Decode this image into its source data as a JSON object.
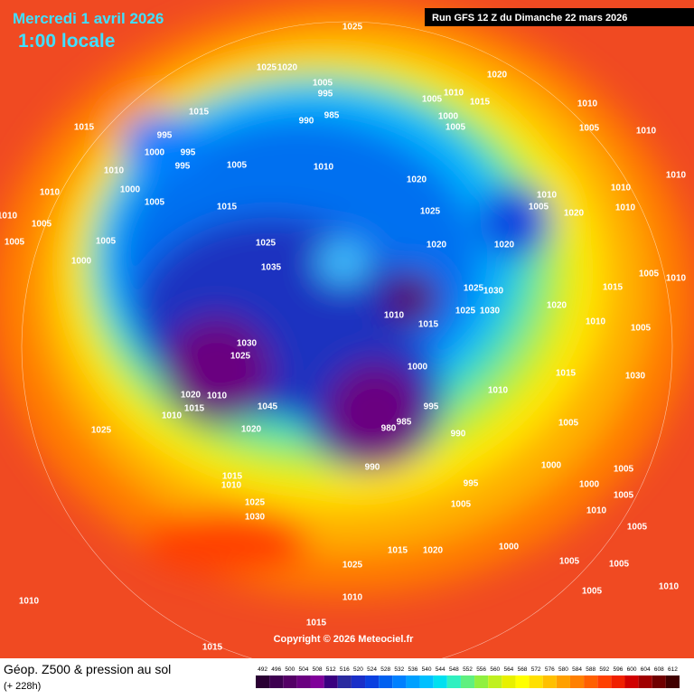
{
  "header": {
    "date": "Mercredi 1 avril 2026",
    "time": "1:00 locale",
    "run": "Run GFS 12 Z du Dimanche 22 mars 2026"
  },
  "copyright": "Copyright © 2026 Meteociel.fr",
  "caption": {
    "title": "Géop. Z500 & pression au sol",
    "lead": "(+ 228h)"
  },
  "scale": {
    "labels": [
      492,
      496,
      500,
      504,
      508,
      512,
      516,
      520,
      524,
      528,
      532,
      536,
      540,
      544,
      548,
      552,
      556,
      560,
      564,
      568,
      572,
      576,
      580,
      584,
      588,
      592,
      596,
      600,
      604,
      608,
      612
    ],
    "colors": [
      "#2a0033",
      "#3d0050",
      "#540066",
      "#6a0080",
      "#80009a",
      "#3a0080",
      "#2a2aa0",
      "#1a2fc8",
      "#0a40e0",
      "#0060f0",
      "#0080ff",
      "#00a0ff",
      "#00c0ff",
      "#00e0f0",
      "#30f0c0",
      "#60f080",
      "#90f040",
      "#c0f020",
      "#e8f000",
      "#ffff00",
      "#ffe000",
      "#ffc000",
      "#ffa000",
      "#ff8000",
      "#ff6000",
      "#ff4000",
      "#f02000",
      "#d00000",
      "#a00000",
      "#700000",
      "#400000"
    ]
  },
  "isobars": [
    1025,
    1025,
    1020,
    1020,
    1005,
    995,
    990,
    985,
    1005,
    1010,
    1015,
    1000,
    1005,
    1015,
    1015,
    995,
    1000,
    995,
    995,
    1005,
    1010,
    1010,
    1000,
    1005,
    1010,
    1010,
    1005,
    1005,
    1005,
    1000,
    1015,
    1025,
    1035,
    1020,
    1025,
    1020,
    1020,
    1010,
    1005,
    1020,
    1025,
    1030,
    1025,
    1030,
    1020,
    1010,
    1015,
    1030,
    1025,
    1000,
    1020,
    1010,
    1015,
    1010,
    1045,
    995,
    980,
    985,
    990,
    990,
    995,
    1010,
    1025,
    1020,
    1015,
    1010,
    1025,
    1030,
    1005,
    1000,
    1015,
    1020,
    1025,
    1010,
    1010,
    1015,
    1015,
    1005,
    1005,
    1010,
    1005,
    1000,
    1000,
    1005,
    1010,
    1005,
    1015,
    1030,
    1010,
    1005,
    1015,
    1010,
    1010,
    1005,
    1010,
    1010,
    1010,
    1005,
    1010,
    1005,
    1005
  ]
}
